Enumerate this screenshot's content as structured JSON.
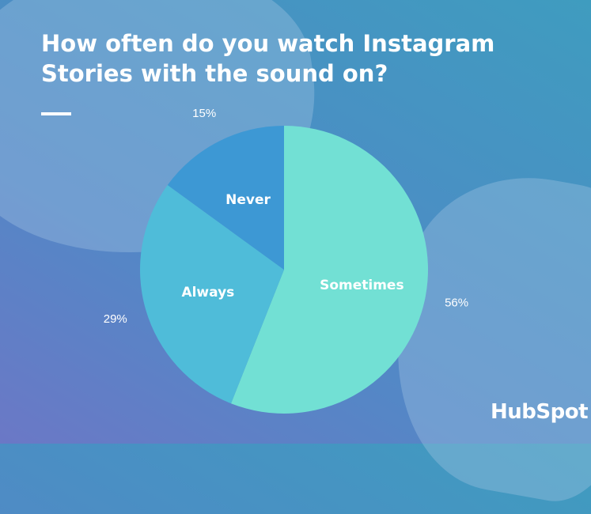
{
  "chart_data": {
    "type": "pie",
    "title": "How often do you watch Instagram Stories with the sound on?",
    "slices": [
      {
        "label": "Sometimes",
        "value": 56,
        "value_label": "56%",
        "color": "#72e0d4"
      },
      {
        "label": "Always",
        "value": 29,
        "value_label": "29%",
        "color": "#4fbcd9"
      },
      {
        "label": "Never",
        "value": 15,
        "value_label": "15%",
        "color": "#3d98d4"
      }
    ],
    "start": "top",
    "direction": "clockwise"
  },
  "branding": {
    "logo": "HubSpot"
  }
}
